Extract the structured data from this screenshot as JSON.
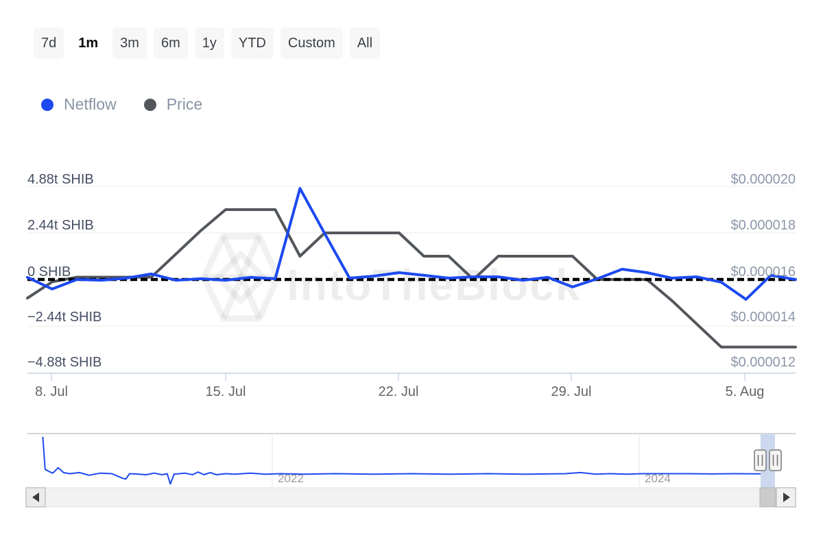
{
  "toolbar": {
    "buttons": [
      {
        "label": "7d",
        "selected": false
      },
      {
        "label": "1m",
        "selected": true
      },
      {
        "label": "3m",
        "selected": false
      },
      {
        "label": "6m",
        "selected": false
      },
      {
        "label": "1y",
        "selected": false
      },
      {
        "label": "YTD",
        "selected": false
      },
      {
        "label": "Custom",
        "selected": false
      },
      {
        "label": "All",
        "selected": false
      }
    ]
  },
  "legend": {
    "items": [
      {
        "label": "Netflow",
        "color": "#1c49f0"
      },
      {
        "label": "Price",
        "color": "#53575c"
      }
    ]
  },
  "watermark": {
    "text": "IntoTheBlock"
  },
  "chart_data": {
    "type": "line",
    "title": "",
    "x_start_day": "7. Jul",
    "x_end_day": "7. Aug",
    "interval": "daily",
    "x_ticks": [
      "8. Jul",
      "15. Jul",
      "22. Jul",
      "29. Jul",
      "5. Aug"
    ],
    "y_axis_left": {
      "unit": "SHIB",
      "tick_values_trillions": [
        4.88,
        2.44,
        0,
        -2.44,
        -4.88
      ],
      "labels": [
        "4.88t SHIB",
        "2.44t SHIB",
        "0 SHIB",
        "−2.44t SHIB",
        "−4.88t SHIB"
      ]
    },
    "y_axis_right": {
      "unit": "USD",
      "tick_values": [
        2e-05,
        1.8e-05,
        1.6e-05,
        1.4e-05,
        1.2e-05
      ],
      "labels": [
        "$0.000020",
        "$0.000018",
        "$0.000016",
        "$0.000014",
        "$0.000012"
      ]
    },
    "zero_line_dashed": true,
    "grid": "horizontal",
    "legend_position": "top-left",
    "series": [
      {
        "name": "Netflow",
        "unit": "trillion SHIB",
        "color": "#1c49f0",
        "values": [
          0.11,
          -0.5,
          0.0,
          -0.04,
          0.07,
          0.29,
          -0.04,
          0.04,
          -0.04,
          0.11,
          0.04,
          4.77,
          2.4,
          0.07,
          0.18,
          0.36,
          0.22,
          0.07,
          0.14,
          0.14,
          -0.04,
          0.11,
          -0.39,
          0.04,
          0.54,
          0.36,
          0.07,
          0.14,
          -0.14,
          -1.04,
          0.22,
          0.0
        ]
      },
      {
        "name": "Price",
        "unit": "USD",
        "color": "#53575c",
        "values": [
          1.52e-05,
          1.59e-05,
          1.61e-05,
          1.61e-05,
          1.61e-05,
          1.61e-05,
          1.71e-05,
          1.81e-05,
          1.9e-05,
          1.9e-05,
          1.9e-05,
          1.7e-05,
          1.8e-05,
          1.8e-05,
          1.8e-05,
          1.8e-05,
          1.7e-05,
          1.7e-05,
          1.6e-05,
          1.7e-05,
          1.7e-05,
          1.7e-05,
          1.7e-05,
          1.6e-05,
          1.6e-05,
          1.6e-05,
          1.51e-05,
          1.41e-05,
          1.31e-05,
          1.31e-05,
          1.31e-05,
          1.31e-05
        ]
      }
    ]
  },
  "navigator": {
    "year_labels": [
      "2022",
      "2024"
    ],
    "points": [
      [
        0.02,
        0.06
      ],
      [
        0.023,
        0.66
      ],
      [
        0.028,
        0.7
      ],
      [
        0.033,
        0.73
      ],
      [
        0.04,
        0.63
      ],
      [
        0.047,
        0.72
      ],
      [
        0.055,
        0.74
      ],
      [
        0.068,
        0.72
      ],
      [
        0.08,
        0.77
      ],
      [
        0.095,
        0.73
      ],
      [
        0.11,
        0.74
      ],
      [
        0.123,
        0.82
      ],
      [
        0.128,
        0.84
      ],
      [
        0.133,
        0.74
      ],
      [
        0.145,
        0.75
      ],
      [
        0.155,
        0.76
      ],
      [
        0.165,
        0.73
      ],
      [
        0.175,
        0.76
      ],
      [
        0.182,
        0.74
      ],
      [
        0.186,
        0.93
      ],
      [
        0.191,
        0.75
      ],
      [
        0.205,
        0.73
      ],
      [
        0.215,
        0.76
      ],
      [
        0.222,
        0.71
      ],
      [
        0.23,
        0.76
      ],
      [
        0.238,
        0.72
      ],
      [
        0.246,
        0.76
      ],
      [
        0.258,
        0.74
      ],
      [
        0.27,
        0.75
      ],
      [
        0.29,
        0.73
      ],
      [
        0.31,
        0.75
      ],
      [
        0.33,
        0.74
      ],
      [
        0.36,
        0.75
      ],
      [
        0.4,
        0.74
      ],
      [
        0.45,
        0.75
      ],
      [
        0.5,
        0.74
      ],
      [
        0.55,
        0.75
      ],
      [
        0.6,
        0.74
      ],
      [
        0.65,
        0.75
      ],
      [
        0.7,
        0.74
      ],
      [
        0.72,
        0.72
      ],
      [
        0.74,
        0.75
      ],
      [
        0.76,
        0.74
      ],
      [
        0.78,
        0.75
      ],
      [
        0.8,
        0.74
      ],
      [
        0.83,
        0.74
      ],
      [
        0.86,
        0.74
      ],
      [
        0.89,
        0.745
      ],
      [
        0.92,
        0.74
      ],
      [
        0.95,
        0.744
      ],
      [
        0.973,
        0.74
      ]
    ]
  }
}
